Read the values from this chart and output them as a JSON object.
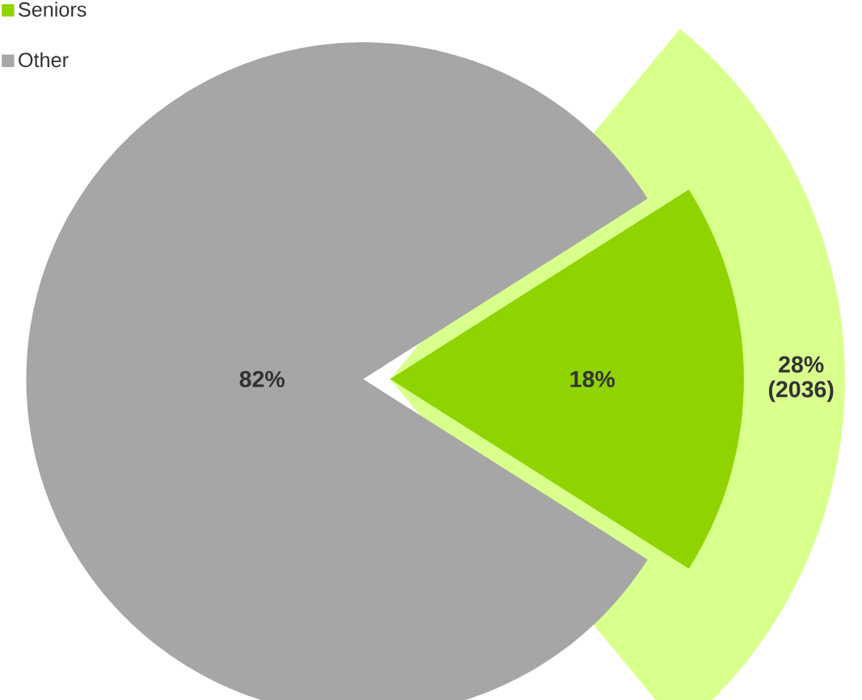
{
  "chart_data": {
    "type": "pie",
    "categories": [
      "Seniors",
      "Other"
    ],
    "legend": "top left",
    "series": [
      {
        "values": [
          18,
          82
        ],
        "colors": [
          "#8fd400",
          "#a6a6a6"
        ],
        "value_labels": [
          "18%",
          "82%"
        ]
      },
      {
        "values": [
          28,
          null
        ],
        "colors": [
          "#d9ff8c",
          null
        ],
        "value_labels": [
          "28% (2036)",
          null
        ]
      }
    ]
  }
}
